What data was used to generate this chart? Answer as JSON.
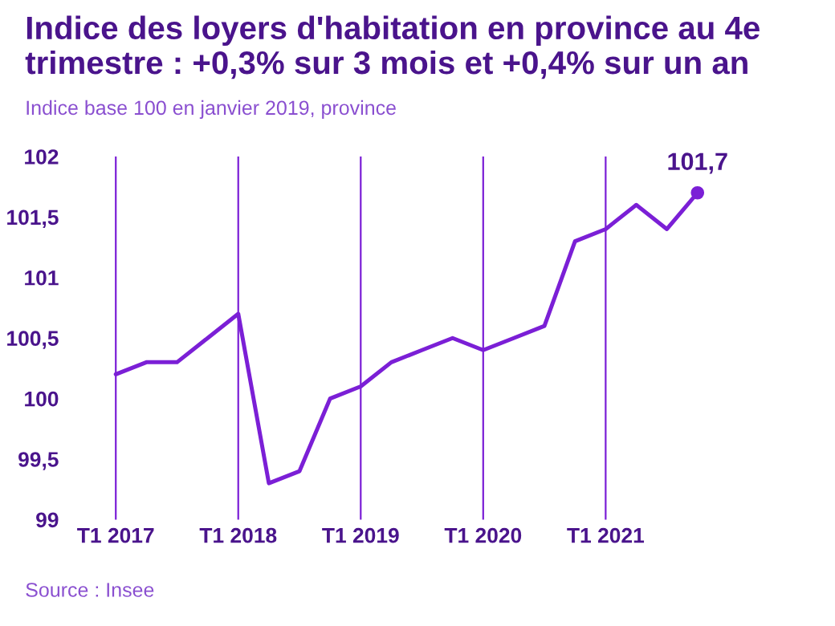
{
  "chart_data": {
    "type": "line",
    "title": "Indice des loyers d'habitation en province au 4e trimestre : +0,3% sur 3 mois et +0,4% sur un an",
    "subtitle": "Indice base 100 en janvier 2019, province",
    "categories": [
      "T1 2017",
      null,
      null,
      null,
      "T1 2018",
      null,
      null,
      null,
      "T1 2019",
      null,
      null,
      null,
      "T1 2020",
      null,
      null,
      null,
      "T1 2021",
      null,
      null,
      null
    ],
    "series": [
      {
        "color": "#7b1fd6",
        "values": [
          100.2,
          100.3,
          100.3,
          100.5,
          100.7,
          99.3,
          99.4,
          100.0,
          100.1,
          100.3,
          100.4,
          100.5,
          100.4,
          100.5,
          100.6,
          101.3,
          101.4,
          101.6,
          101.4,
          101.7
        ]
      }
    ],
    "ylim": [
      99,
      102
    ],
    "yticks": [
      99,
      {
        "value": 99.5,
        "label": "99,5"
      },
      100,
      {
        "value": 100.5,
        "label": "100,5"
      },
      101,
      {
        "value": 101.5,
        "label": "101,5"
      },
      102
    ],
    "grid": "x",
    "annotations": [
      {
        "text": "101,7",
        "y": 101.7
      },
      "Source : Insee"
    ]
  }
}
